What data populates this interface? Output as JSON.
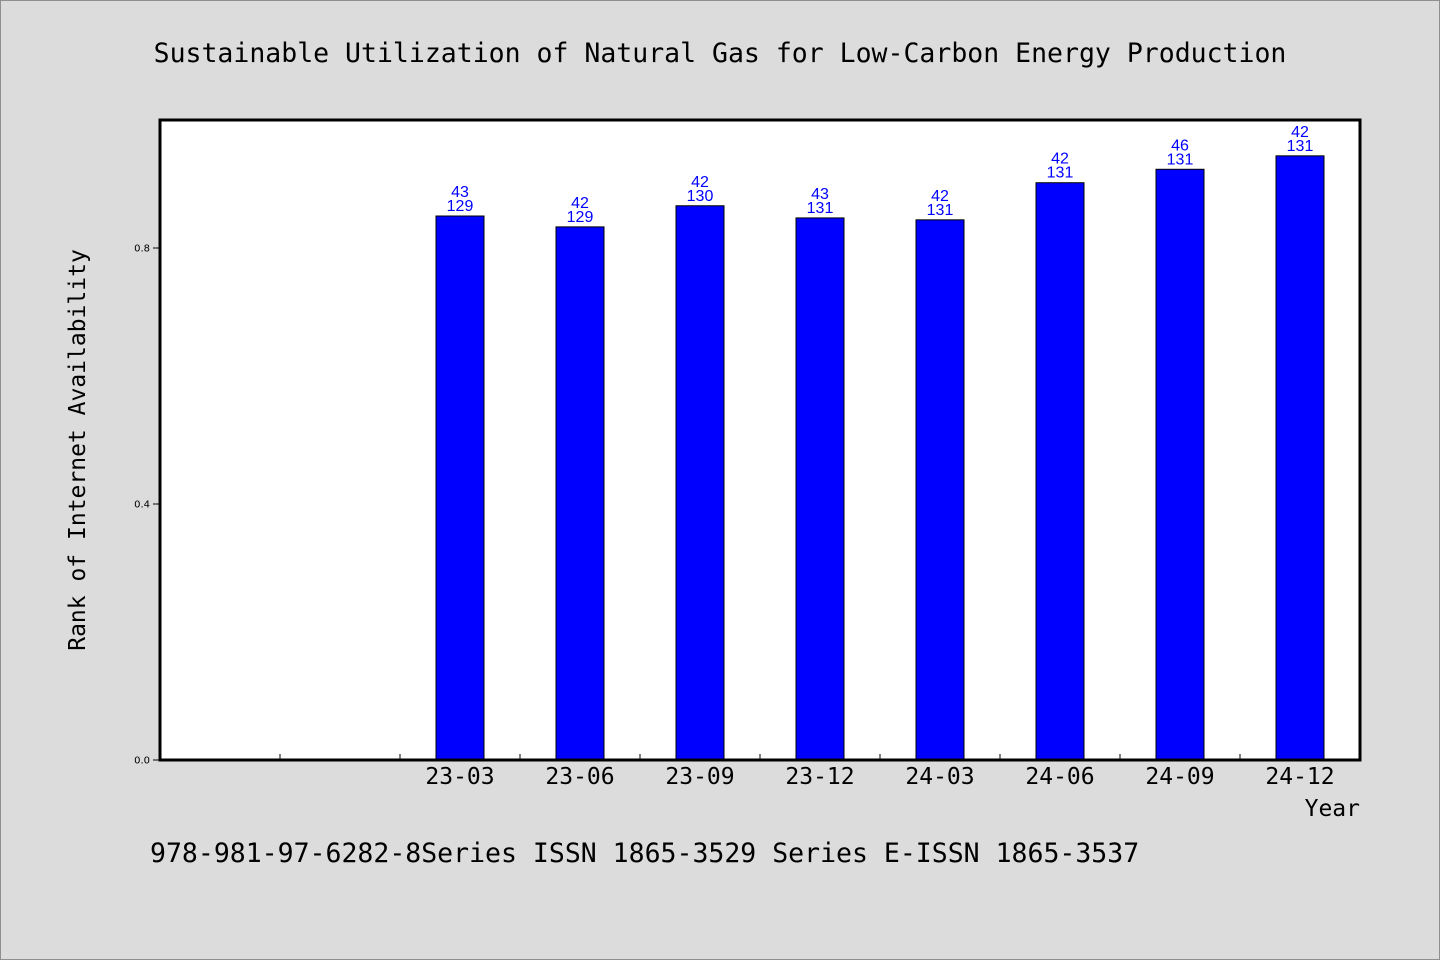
{
  "chart_data": {
    "type": "bar",
    "title": "Sustainable Utilization of Natural Gas for Low-Carbon Energy Production",
    "xlabel": "Year",
    "ylabel": "Rank of Internet Availability",
    "categories": [
      "23-03",
      "23-06",
      "23-09",
      "23-12",
      "24-03",
      "24-06",
      "24-09",
      "24-12"
    ],
    "values": [
      0.85,
      0.833,
      0.866,
      0.847,
      0.844,
      0.902,
      0.923,
      0.944
    ],
    "data_labels": [
      [
        43,
        129
      ],
      [
        42,
        129
      ],
      [
        42,
        130
      ],
      [
        43,
        131
      ],
      [
        42,
        131
      ],
      [
        42,
        131
      ],
      [
        46,
        131
      ],
      [
        42,
        131
      ]
    ],
    "xlim": [
      -2.5,
      7.5
    ],
    "ylim": [
      0,
      1.0
    ],
    "yticks": [
      0,
      0.4,
      0.8
    ],
    "ytick_labels": [
      "0.0",
      "0.4",
      "0.8"
    ],
    "grid": false,
    "legend": null,
    "colors": {
      "background": "#dcdcdc",
      "plot_background": "#ffffff",
      "bar": "#0000ff",
      "bar_edge": "#000000",
      "data_label": "#0000ff"
    }
  },
  "footer": {
    "text": "978-981-97-6282-8Series ISSN 1865-3529 Series E-ISSN 1865-3537"
  }
}
